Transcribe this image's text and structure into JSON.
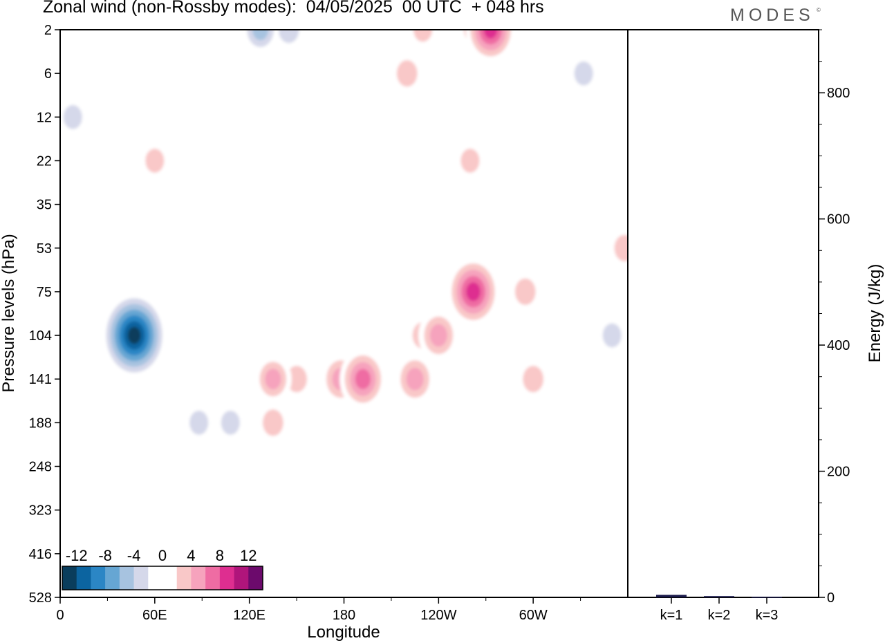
{
  "header": {
    "title": "Zonal wind (non-Rossby modes):  04/05/2025  00 UTC  + 048 hrs",
    "brand": "MODES",
    "brand_mark": "©"
  },
  "chart_data": [
    {
      "type": "heatmap",
      "title": "Zonal wind (non-Rossby modes):  04/05/2025  00 UTC  + 048 hrs",
      "xlabel": "Longitude",
      "ylabel": "Pressure levels (hPa)",
      "x_ticks": [
        {
          "label": "0",
          "lon": 0
        },
        {
          "label": "60E",
          "lon": 60
        },
        {
          "label": "120E",
          "lon": 120
        },
        {
          "label": "180",
          "lon": 180
        },
        {
          "label": "120W",
          "lon": 240
        },
        {
          "label": "60W",
          "lon": 300
        }
      ],
      "x_range": [
        0,
        360
      ],
      "y_levels": [
        "2",
        "6",
        "12",
        "22",
        "35",
        "53",
        "75",
        "104",
        "141",
        "188",
        "248",
        "323",
        "416",
        "528"
      ],
      "colorbar": {
        "labels": [
          "-12",
          "-8",
          "-4",
          "0",
          "4",
          "8",
          "12"
        ],
        "label_values": [
          -12,
          -8,
          -4,
          0,
          4,
          8,
          12
        ],
        "colors": [
          "#0a3d5c",
          "#0c64a0",
          "#2b86c5",
          "#66a6d3",
          "#a7c3e0",
          "#d5d8ea",
          "#ffffff",
          "#ffffff",
          "#f9c8c8",
          "#f6a3bd",
          "#ef6ca3",
          "#de2e90",
          "#b0157b",
          "#6c0a6c"
        ]
      },
      "features": [
        {
          "lon": 10,
          "level": "2",
          "value": -1
        },
        {
          "lon": 33,
          "level": "2",
          "value": -2
        },
        {
          "lon": 55,
          "level": "2",
          "value": -2
        },
        {
          "lon": 80,
          "level": "2",
          "value": -1
        },
        {
          "lon": 105,
          "level": "2",
          "value": -2
        },
        {
          "lon": 127,
          "level": "2",
          "value": -5
        },
        {
          "lon": 145,
          "level": "2",
          "value": -4
        },
        {
          "lon": 165,
          "level": "2",
          "value": -2
        },
        {
          "lon": 191,
          "level": "2",
          "value": 1
        },
        {
          "lon": 230,
          "level": "2",
          "value": 3
        },
        {
          "lon": 273,
          "level": "2",
          "value": 9
        },
        {
          "lon": 262,
          "level": "2",
          "value": 3
        },
        {
          "lon": 330,
          "level": "2",
          "value": 1
        },
        {
          "lon": 220,
          "level": "6",
          "value": 4
        },
        {
          "lon": 235,
          "level": "6",
          "value": 2
        },
        {
          "lon": 190,
          "level": "6",
          "value": 2
        },
        {
          "lon": 100,
          "level": "6",
          "value": -2
        },
        {
          "lon": 60,
          "level": "6",
          "value": -1
        },
        {
          "lon": 45,
          "level": "6",
          "value": -1
        },
        {
          "lon": 332,
          "level": "6",
          "value": -3
        },
        {
          "lon": 277,
          "level": "6",
          "value": -1
        },
        {
          "lon": 8,
          "level": "12",
          "value": -3
        },
        {
          "lon": 225,
          "level": "12",
          "value": -1
        },
        {
          "lon": 90,
          "level": "12",
          "value": 1
        },
        {
          "lon": 126,
          "level": "12",
          "value": 1
        },
        {
          "lon": 185,
          "level": "12",
          "value": 1
        },
        {
          "lon": 340,
          "level": "12",
          "value": 2
        },
        {
          "lon": 210,
          "level": "22",
          "value": -1
        },
        {
          "lon": 45,
          "level": "22",
          "value": 2
        },
        {
          "lon": 60,
          "level": "22",
          "value": 3
        },
        {
          "lon": 260,
          "level": "22",
          "value": 3
        },
        {
          "lon": 160,
          "level": "22",
          "value": -1
        },
        {
          "lon": 150,
          "level": "35",
          "value": -1
        },
        {
          "lon": 10,
          "level": "35",
          "value": 2
        },
        {
          "lon": 240,
          "level": "35",
          "value": 2
        },
        {
          "lon": 105,
          "level": "35",
          "value": -1
        },
        {
          "lon": 322,
          "level": "53",
          "value": 2
        },
        {
          "lon": 358,
          "level": "53",
          "value": 4
        },
        {
          "lon": 5,
          "level": "75",
          "value": 2
        },
        {
          "lon": 50,
          "level": "75",
          "value": 2
        },
        {
          "lon": 85,
          "level": "75",
          "value": -1
        },
        {
          "lon": 295,
          "level": "75",
          "value": 4
        },
        {
          "lon": 262,
          "level": "75",
          "value": 10
        },
        {
          "lon": 47,
          "level": "104",
          "value": -14
        },
        {
          "lon": 40,
          "level": "104",
          "value": -8
        },
        {
          "lon": 15,
          "level": "104",
          "value": -2
        },
        {
          "lon": 230,
          "level": "104",
          "value": 4
        },
        {
          "lon": 240,
          "level": "104",
          "value": 6
        },
        {
          "lon": 350,
          "level": "104",
          "value": -3
        },
        {
          "lon": 192,
          "level": "141",
          "value": 8
        },
        {
          "lon": 178,
          "level": "141",
          "value": 6
        },
        {
          "lon": 225,
          "level": "141",
          "value": 6
        },
        {
          "lon": 135,
          "level": "141",
          "value": 5
        },
        {
          "lon": 150,
          "level": "141",
          "value": 4
        },
        {
          "lon": 92,
          "level": "141",
          "value": -2
        },
        {
          "lon": 250,
          "level": "141",
          "value": -1
        },
        {
          "lon": 300,
          "level": "141",
          "value": 4
        },
        {
          "lon": 135,
          "level": "188",
          "value": 4
        },
        {
          "lon": 88,
          "level": "188",
          "value": -3
        },
        {
          "lon": 108,
          "level": "188",
          "value": -3
        },
        {
          "lon": 250,
          "level": "188",
          "value": -1
        },
        {
          "lon": 60,
          "level": "248",
          "value": -1
        },
        {
          "lon": 180,
          "level": "248",
          "value": 2
        },
        {
          "lon": 190,
          "level": "323",
          "value": 2
        },
        {
          "lon": 215,
          "level": "323",
          "value": 2
        },
        {
          "lon": 105,
          "level": "323",
          "value": -1
        },
        {
          "lon": 275,
          "level": "323",
          "value": -1
        },
        {
          "lon": 188,
          "level": "416",
          "value": 2
        },
        {
          "lon": 128,
          "level": "416",
          "value": -1
        }
      ]
    },
    {
      "type": "bar",
      "categories": [
        "k=1",
        "k=2",
        "k=3"
      ],
      "values": [
        4,
        2,
        1
      ],
      "ylabel": "Energy (J/kg)",
      "ylim": [
        0,
        900
      ],
      "y_ticks": [
        0,
        200,
        400,
        600,
        800
      ]
    }
  ]
}
